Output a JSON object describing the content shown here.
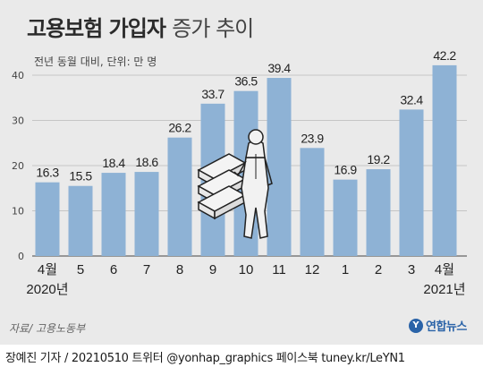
{
  "title": "고용보험 가입자",
  "subtitle": "증가 추이",
  "unit_note": "전년 동월 대비, 단위: 만 명",
  "source": "자료/ 고용노동부",
  "logo_text": "연합뉴스",
  "credit": "장예진 기자 / 20210510  트위터 @yonhap_graphics  페이스북 tuney.kr/LeYN1",
  "colors": {
    "bar": "#8eb2d5",
    "background": "#eaeaea",
    "grid": "#b8b8b8",
    "text": "#222222"
  },
  "chart_data": {
    "type": "bar",
    "title": "고용보험 가입자 증가 추이",
    "ylabel": "",
    "xlabel": "",
    "ylim": [
      0,
      40
    ],
    "y_ticks": [
      0,
      10,
      20,
      30,
      40
    ],
    "grid": true,
    "categories": [
      "4월",
      "5",
      "6",
      "7",
      "8",
      "9",
      "10",
      "11",
      "12",
      "1",
      "2",
      "3",
      "4월"
    ],
    "year_labels": [
      "2020년",
      "",
      "",
      "",
      "",
      "",
      "",
      "",
      "",
      "",
      "",
      "",
      "2021년"
    ],
    "values": [
      16.3,
      15.5,
      18.4,
      18.6,
      26.2,
      33.7,
      36.5,
      39.4,
      23.9,
      16.9,
      19.2,
      32.4,
      42.2
    ],
    "value_labels": [
      "16.3",
      "15.5",
      "18.4",
      "18.6",
      "26.2",
      "33.7",
      "36.5",
      "39.4",
      "23.9",
      "16.9",
      "19.2",
      "32.4",
      "42.2"
    ]
  }
}
